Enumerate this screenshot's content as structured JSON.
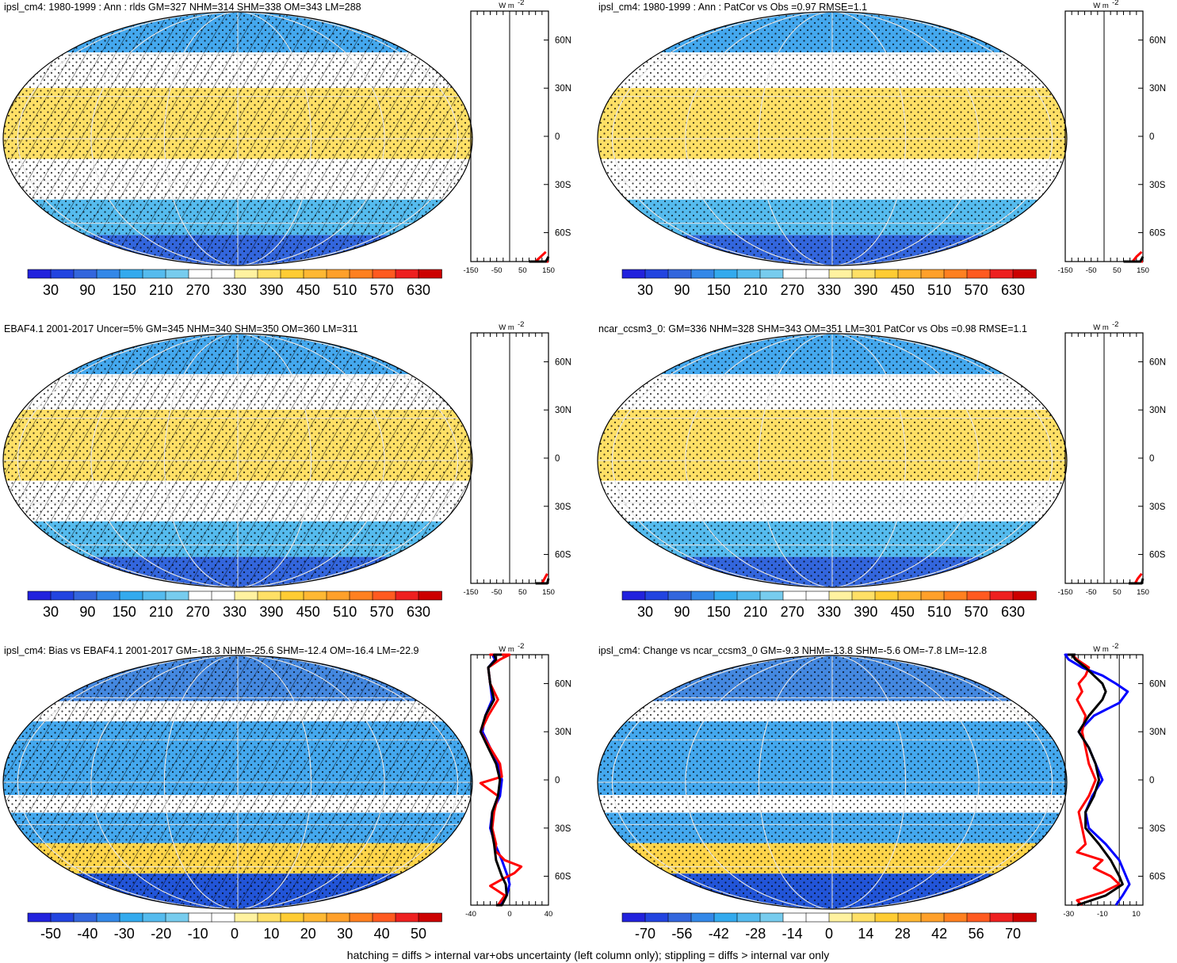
{
  "footer": "hatching = diffs > internal var+obs uncertainty (left column only); stippling = diffs > internal var only",
  "colors": {
    "abs_scale": [
      "#2222dd",
      "#2244e0",
      "#3366dd",
      "#3388e8",
      "#33aaee",
      "#55bbee",
      "#77ccee",
      "#ffffff",
      "#ffffff",
      "#fff2a0",
      "#ffe066",
      "#ffcc33",
      "#ffb833",
      "#ffa02a",
      "#ff8020",
      "#ff5a20",
      "#ee2020",
      "#cc0000"
    ],
    "diff_scale": [
      "#2222dd",
      "#2244e0",
      "#3366dd",
      "#3388e8",
      "#33aaee",
      "#55bbee",
      "#77ccee",
      "#ffffff",
      "#ffffff",
      "#fff2a0",
      "#ffe066",
      "#ffcc33",
      "#ffb833",
      "#ffa02a",
      "#ff8020",
      "#ff5a20",
      "#ee2020",
      "#cc0000"
    ],
    "zonal_model": "#ff0000",
    "zonal_obs": "#0000ff",
    "zonal_mean": "#000000"
  },
  "chart_data": [
    {
      "type": "heatmap",
      "title": "ipsl_cm4: 1980-1999 : Ann : rlds GM=327 NHM=314 SHM=338 OM=343 LM=288",
      "colorbar_ticks": [
        "30",
        "90",
        "150",
        "210",
        "270",
        "330",
        "390",
        "450",
        "510",
        "570",
        "630"
      ],
      "hatching": true,
      "stippling": true,
      "zonal": {
        "unit_label": "W m",
        "unit_sup": "-2",
        "x_ticks": [
          "-150",
          "-50",
          "50",
          "150"
        ],
        "xlim": [
          -150,
          150
        ],
        "lat_ticks": [
          "60N",
          "30N",
          "0",
          "30S",
          "60S"
        ],
        "series": [
          {
            "color": "red",
            "lat": [
              -90,
              -85,
              -80,
              -75,
              -72
            ],
            "value": [
              150,
              130,
              100,
              120,
              140
            ]
          },
          {
            "color": "black",
            "lat": [
              -90,
              -86,
              -82,
              -78,
              -75
            ],
            "value": [
              75,
              95,
              120,
              140,
              150
            ]
          }
        ]
      }
    },
    {
      "type": "heatmap",
      "title": "ipsl_cm4: 1980-1999 : Ann : PatCor vs Obs =0.97 RMSE=1.1",
      "colorbar_ticks": [
        "30",
        "90",
        "150",
        "210",
        "270",
        "330",
        "390",
        "450",
        "510",
        "570",
        "630"
      ],
      "hatching": false,
      "stippling": true,
      "zonal": {
        "unit_label": "W m",
        "unit_sup": "-2",
        "x_ticks": [
          "-150",
          "-50",
          "50",
          "150"
        ],
        "xlim": [
          -150,
          150
        ],
        "lat_ticks": [
          "60N",
          "30N",
          "0",
          "30S",
          "60S"
        ],
        "series": [
          {
            "color": "red",
            "lat": [
              -90,
              -85,
              -80,
              -75,
              -72
            ],
            "value": [
              150,
              135,
              110,
              125,
              145
            ]
          },
          {
            "color": "black",
            "lat": [
              -90,
              -86,
              -82,
              -78,
              -75
            ],
            "value": [
              75,
              95,
              120,
              140,
              150
            ]
          }
        ]
      }
    },
    {
      "type": "heatmap",
      "title": "EBAF4.1 2001-2017 Uncer=5% GM=345 NHM=340 SHM=350 OM=360 LM=311",
      "colorbar_ticks": [
        "30",
        "90",
        "150",
        "210",
        "270",
        "330",
        "390",
        "450",
        "510",
        "570",
        "630"
      ],
      "hatching": true,
      "stippling": true,
      "zonal": {
        "unit_label": "W m",
        "unit_sup": "-2",
        "x_ticks": [
          "-150",
          "-50",
          "50",
          "150"
        ],
        "xlim": [
          -150,
          150
        ],
        "lat_ticks": [
          "60N",
          "30N",
          "0",
          "30S",
          "60S"
        ],
        "series": [
          {
            "color": "red",
            "lat": [
              -90,
              -85,
              -80,
              -75,
              -72
            ],
            "value": [
              145,
              140,
              125,
              135,
              145
            ]
          },
          {
            "color": "black",
            "lat": [
              -90,
              -86,
              -82,
              -78,
              -75
            ],
            "value": [
              100,
              120,
              135,
              145,
              150
            ]
          }
        ]
      }
    },
    {
      "type": "heatmap",
      "title": "ncar_ccsm3_0: GM=336 NHM=328 SHM=343 OM=351 LM=301 PatCor vs Obs =0.98 RMSE=1.1",
      "colorbar_ticks": [
        "30",
        "90",
        "150",
        "210",
        "270",
        "330",
        "390",
        "450",
        "510",
        "570",
        "630"
      ],
      "hatching": false,
      "stippling": true,
      "zonal": {
        "unit_label": "W m",
        "unit_sup": "-2",
        "x_ticks": [
          "-150",
          "-50",
          "50",
          "150"
        ],
        "xlim": [
          -150,
          150
        ],
        "lat_ticks": [
          "60N",
          "30N",
          "0",
          "30S",
          "60S"
        ],
        "series": [
          {
            "color": "red",
            "lat": [
              -90,
              -85,
              -80,
              -75,
              -72
            ],
            "value": [
              145,
              135,
              120,
              130,
              145
            ]
          },
          {
            "color": "black",
            "lat": [
              -90,
              -86,
              -82,
              -78,
              -75
            ],
            "value": [
              95,
              115,
              130,
              145,
              150
            ]
          }
        ]
      }
    },
    {
      "type": "heatmap",
      "title": "ipsl_cm4: Bias vs EBAF4.1 2001-2017 GM=-18.3 NHM=-25.6 SHM=-12.4 OM=-16.4 LM=-22.9",
      "colorbar_ticks": [
        "-50",
        "-40",
        "-30",
        "-20",
        "-10",
        "0",
        "10",
        "20",
        "30",
        "40",
        "50"
      ],
      "hatching": true,
      "stippling": true,
      "zonal": {
        "unit_label": "W m",
        "unit_sup": "-2",
        "x_ticks": [
          "-40",
          "0",
          "40"
        ],
        "xlim": [
          -40,
          40
        ],
        "lat_ticks": [
          "60N",
          "30N",
          "0",
          "30S",
          "60S"
        ],
        "series": [
          {
            "color": "blue",
            "lat": [
              -88,
              -80,
              -72,
              -65,
              -60,
              -50,
              -40,
              -30,
              -20,
              -10,
              0,
              10,
              20,
              30,
              40,
              50,
              60,
              70,
              75,
              80,
              85,
              88
            ],
            "value": [
              -12,
              -10,
              -3,
              0,
              -2,
              -8,
              -15,
              -20,
              -18,
              -10,
              -8,
              -12,
              -20,
              -28,
              -25,
              -18,
              -20,
              -22,
              -15,
              -18,
              -12,
              -8
            ]
          },
          {
            "color": "red",
            "lat": [
              -88,
              -80,
              -72,
              -66,
              -62,
              -58,
              -54,
              -50,
              -44,
              -40,
              -30,
              -20,
              -10,
              -2,
              2,
              10,
              20,
              30,
              40,
              50,
              60,
              70,
              75,
              78,
              82,
              86,
              88
            ],
            "value": [
              -14,
              -12,
              -5,
              -20,
              -8,
              5,
              12,
              -5,
              -15,
              -14,
              -18,
              -16,
              -12,
              -30,
              -8,
              -10,
              -20,
              -30,
              -22,
              -12,
              -20,
              -22,
              -10,
              0,
              -20,
              -12,
              -8
            ]
          },
          {
            "color": "black",
            "lat": [
              -88,
              -80,
              -72,
              -65,
              -60,
              -50,
              -40,
              -30,
              -20,
              -10,
              0,
              10,
              20,
              30,
              40,
              50,
              60,
              70,
              75,
              80,
              85,
              88
            ],
            "value": [
              -14,
              -8,
              -3,
              -4,
              -8,
              -14,
              -16,
              -19,
              -18,
              -12,
              -10,
              -14,
              -22,
              -30,
              -25,
              -16,
              -20,
              -22,
              -14,
              -16,
              -12,
              -8
            ]
          }
        ]
      }
    },
    {
      "type": "heatmap",
      "title": "ipsl_cm4: Change vs ncar_ccsm3_0 GM=-9.3 NHM=-13.8 SHM=-5.6 OM=-7.8 LM=-12.8",
      "colorbar_ticks": [
        "-70",
        "-56",
        "-42",
        "-28",
        "-14",
        "0",
        "14",
        "28",
        "42",
        "56",
        "70"
      ],
      "hatching": false,
      "stippling": true,
      "zonal": {
        "unit_label": "W m",
        "unit_sup": "-2",
        "x_ticks": [
          "-30",
          "-10",
          "10"
        ],
        "xlim": [
          -32,
          14
        ],
        "lat_ticks": [
          "60N",
          "30N",
          "0",
          "30S",
          "60S"
        ],
        "series": [
          {
            "color": "blue",
            "lat": [
              -80,
              -72,
              -65,
              -60,
              -50,
              -40,
              -30,
              -20,
              -10,
              0,
              10,
              20,
              30,
              40,
              48,
              55,
              60,
              65,
              70,
              75,
              80,
              85,
              88
            ],
            "value": [
              -2,
              2,
              6,
              4,
              0,
              -8,
              -18,
              -20,
              -16,
              -10,
              -14,
              -18,
              -24,
              -15,
              0,
              5,
              -2,
              -10,
              -22,
              -30,
              -32,
              -28,
              -26
            ]
          },
          {
            "color": "red",
            "lat": [
              -80,
              -75,
              -70,
              -65,
              -60,
              -55,
              -50,
              -45,
              -40,
              -30,
              -20,
              -10,
              0,
              10,
              20,
              30,
              40,
              50,
              55,
              60,
              65,
              70,
              75,
              80,
              85,
              88
            ],
            "value": [
              -22,
              -25,
              -10,
              0,
              -5,
              -15,
              -10,
              -25,
              -20,
              -22,
              -24,
              -18,
              -14,
              -18,
              -20,
              -22,
              -20,
              -25,
              -22,
              -24,
              -20,
              -18,
              -25,
              -28,
              -30,
              -28
            ]
          },
          {
            "color": "black",
            "lat": [
              -80,
              -72,
              -65,
              -60,
              -50,
              -40,
              -30,
              -20,
              -10,
              0,
              10,
              20,
              30,
              40,
              50,
              55,
              60,
              65,
              70,
              75,
              80,
              85,
              88
            ],
            "value": [
              -25,
              -8,
              2,
              0,
              -5,
              -12,
              -20,
              -20,
              -15,
              -12,
              -14,
              -18,
              -24,
              -18,
              -10,
              -8,
              -10,
              -15,
              -20,
              -26,
              -28,
              -30,
              -26
            ]
          }
        ]
      }
    }
  ]
}
